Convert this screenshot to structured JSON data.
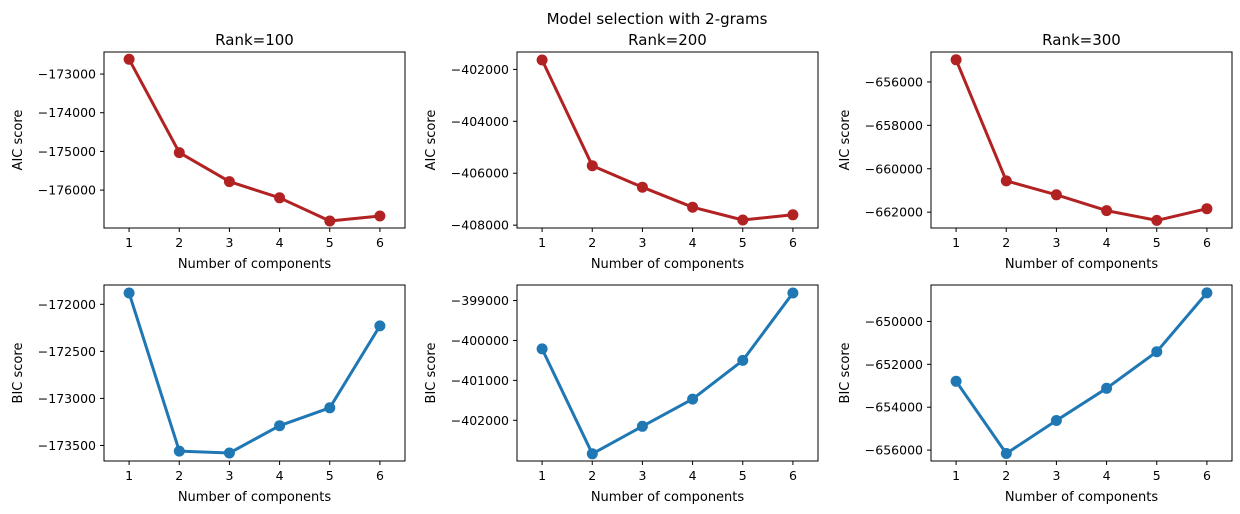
{
  "suptitle": "Model selection with 2-grams",
  "colors": {
    "aic": "#b22222",
    "bic": "#1f77b4"
  },
  "chart_data": [
    {
      "type": "line",
      "title": "Rank=100",
      "xlabel": "Number of components",
      "ylabel": "AIC score",
      "series_kind": "aic",
      "x": [
        1,
        2,
        3,
        4,
        5,
        6
      ],
      "values": [
        -172620,
        -175030,
        -175780,
        -176200,
        -176800,
        -176670
      ],
      "xticks": [
        "1",
        "2",
        "3",
        "4",
        "5",
        "6"
      ],
      "yticks": [
        -173000,
        -174000,
        -175000,
        -176000
      ],
      "ytick_labels": [
        "−173000",
        "−174000",
        "−175000",
        "−176000"
      ],
      "ylim": [
        -176980,
        -172430
      ]
    },
    {
      "type": "line",
      "title": "Rank=200",
      "xlabel": "Number of components",
      "ylabel": "AIC score",
      "series_kind": "aic",
      "x": [
        1,
        2,
        3,
        4,
        5,
        6
      ],
      "values": [
        -401640,
        -405710,
        -406540,
        -407310,
        -407800,
        -407600
      ],
      "xticks": [
        "1",
        "2",
        "3",
        "4",
        "5",
        "6"
      ],
      "yticks": [
        -402000,
        -404000,
        -406000,
        -408000
      ],
      "ytick_labels": [
        "−402000",
        "−404000",
        "−406000",
        "−408000"
      ],
      "ylim": [
        -408110,
        -401330
      ]
    },
    {
      "type": "line",
      "title": "Rank=300",
      "xlabel": "Number of components",
      "ylabel": "AIC score",
      "series_kind": "aic",
      "x": [
        1,
        2,
        3,
        4,
        5,
        6
      ],
      "values": [
        -654980,
        -660560,
        -661200,
        -661930,
        -662380,
        -661840
      ],
      "xticks": [
        "1",
        "2",
        "3",
        "4",
        "5",
        "6"
      ],
      "yticks": [
        -656000,
        -658000,
        -660000,
        -662000
      ],
      "ytick_labels": [
        "−656000",
        "−658000",
        "−660000",
        "−662000"
      ],
      "ylim": [
        -662730,
        -654620
      ]
    },
    {
      "type": "line",
      "title": "",
      "xlabel": "Number of components",
      "ylabel": "BIC score",
      "series_kind": "bic",
      "x": [
        1,
        2,
        3,
        4,
        5,
        6
      ],
      "values": [
        -171880,
        -173560,
        -173580,
        -173290,
        -173100,
        -172230
      ],
      "xticks": [
        "1",
        "2",
        "3",
        "4",
        "5",
        "6"
      ],
      "yticks": [
        -172000,
        -172500,
        -173000,
        -173500
      ],
      "ytick_labels": [
        "−172000",
        "−172500",
        "−173000",
        "−173500"
      ],
      "ylim": [
        -173665,
        -171795
      ]
    },
    {
      "type": "line",
      "title": "",
      "xlabel": "Number of components",
      "ylabel": "BIC score",
      "series_kind": "bic",
      "x": [
        1,
        2,
        3,
        4,
        5,
        6
      ],
      "values": [
        -400210,
        -402840,
        -402150,
        -401470,
        -400500,
        -398810
      ],
      "xticks": [
        "1",
        "2",
        "3",
        "4",
        "5",
        "6"
      ],
      "yticks": [
        -399000,
        -400000,
        -401000,
        -402000
      ],
      "ytick_labels": [
        "−399000",
        "−400000",
        "−401000",
        "−402000"
      ],
      "ylim": [
        -403020,
        -398610
      ]
    },
    {
      "type": "line",
      "title": "",
      "xlabel": "Number of components",
      "ylabel": "BIC score",
      "series_kind": "bic",
      "x": [
        1,
        2,
        3,
        4,
        5,
        6
      ],
      "values": [
        -652790,
        -656160,
        -654620,
        -653120,
        -651410,
        -648670
      ],
      "xticks": [
        "1",
        "2",
        "3",
        "4",
        "5",
        "6"
      ],
      "yticks": [
        -650000,
        -652000,
        -654000,
        -656000
      ],
      "ytick_labels": [
        "−650000",
        "−652000",
        "−654000",
        "−656000"
      ],
      "ylim": [
        -656510,
        -648300
      ]
    }
  ]
}
